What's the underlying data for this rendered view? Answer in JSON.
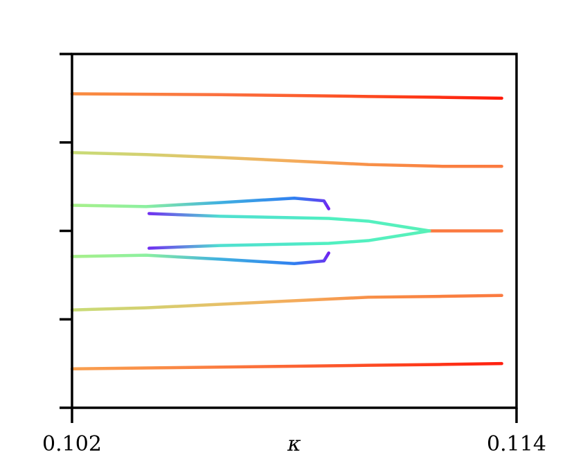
{
  "chart_data": {
    "type": "line",
    "x_label": "κ",
    "xlim": [
      0.102,
      0.114
    ],
    "xticks": [
      0.102,
      0.114
    ],
    "ylim": [
      -2,
      2
    ],
    "yticks": [
      -2,
      -1,
      0,
      1,
      2
    ],
    "show_ytick_labels": false,
    "series": [
      {
        "x": [
          0.102,
          0.104,
          0.106,
          0.108,
          0.11,
          0.112,
          0.1136
        ],
        "values": [
          1.55,
          1.545,
          1.54,
          1.53,
          1.52,
          1.51,
          1.5
        ],
        "colors": [
          "#f98c40",
          "#fa8040",
          "#fb7040",
          "#fc6030",
          "#fd4a20",
          "#fe3014",
          "#ff1a0a"
        ]
      },
      {
        "x": [
          0.102,
          0.104,
          0.106,
          0.108,
          0.11,
          0.112,
          0.1136
        ],
        "values": [
          0.886,
          0.863,
          0.83,
          0.79,
          0.75,
          0.73,
          0.73
        ],
        "colors": [
          "#c8dc78",
          "#d4d070",
          "#e6c068",
          "#f4ac5c",
          "#f89048",
          "#fa8040",
          "#fb7a40"
        ]
      },
      {
        "x": [
          0.102,
          0.104,
          0.106,
          0.108,
          0.1088,
          0.10893
        ],
        "values": [
          0.29,
          0.275,
          0.32,
          0.37,
          0.34,
          0.25
        ],
        "colors": [
          "#a8f08a",
          "#8cf0a0",
          "#40b0e0",
          "#3080f0",
          "#6040f0",
          "#7020f0"
        ]
      },
      {
        "x": [
          0.10408,
          0.106,
          0.108,
          0.10893,
          0.11,
          0.11165
        ],
        "values": [
          0.196,
          0.165,
          0.149,
          0.141,
          0.11,
          0
        ],
        "colors": [
          "#7030f0",
          "#50e0d0",
          "#50e8c8",
          "#50f0c0",
          "#54f0c0",
          "#58f0b8"
        ]
      },
      {
        "x": [
          0.11165,
          0.1136
        ],
        "values": [
          0,
          0
        ],
        "colors": [
          "#fb7a40",
          "#fb7a40"
        ]
      },
      {
        "x": [
          0.102,
          0.104,
          0.106,
          0.108,
          0.1088,
          0.10893
        ],
        "values": [
          -0.29,
          -0.275,
          -0.32,
          -0.37,
          -0.34,
          -0.25
        ],
        "colors": [
          "#a8f08a",
          "#8cf0a0",
          "#40b0e0",
          "#3080f0",
          "#6040f0",
          "#7020f0"
        ]
      },
      {
        "x": [
          0.10408,
          0.106,
          0.108,
          0.10893,
          0.11,
          0.11165
        ],
        "values": [
          -0.196,
          -0.165,
          -0.149,
          -0.141,
          -0.11,
          0
        ],
        "colors": [
          "#7030f0",
          "#50e0d0",
          "#50e8c8",
          "#50f0c0",
          "#54f0c0",
          "#58f0b8"
        ]
      },
      {
        "x": [
          0.102,
          0.104,
          0.106,
          0.108,
          0.11,
          0.112,
          0.1136
        ],
        "values": [
          -0.894,
          -0.87,
          -0.83,
          -0.79,
          -0.75,
          -0.74,
          -0.73
        ],
        "colors": [
          "#c8dc78",
          "#d4d070",
          "#e6c068",
          "#f4ac5c",
          "#f89048",
          "#fa8040",
          "#fb7a40"
        ]
      },
      {
        "x": [
          0.102,
          0.104,
          0.106,
          0.108,
          0.11,
          0.112,
          0.1136
        ],
        "values": [
          -1.56,
          -1.55,
          -1.54,
          -1.53,
          -1.52,
          -1.51,
          -1.5
        ],
        "colors": [
          "#f9a050",
          "#fa9048",
          "#fb7c40",
          "#fc6434",
          "#fd4c24",
          "#fe3418",
          "#ff2010"
        ]
      }
    ]
  }
}
